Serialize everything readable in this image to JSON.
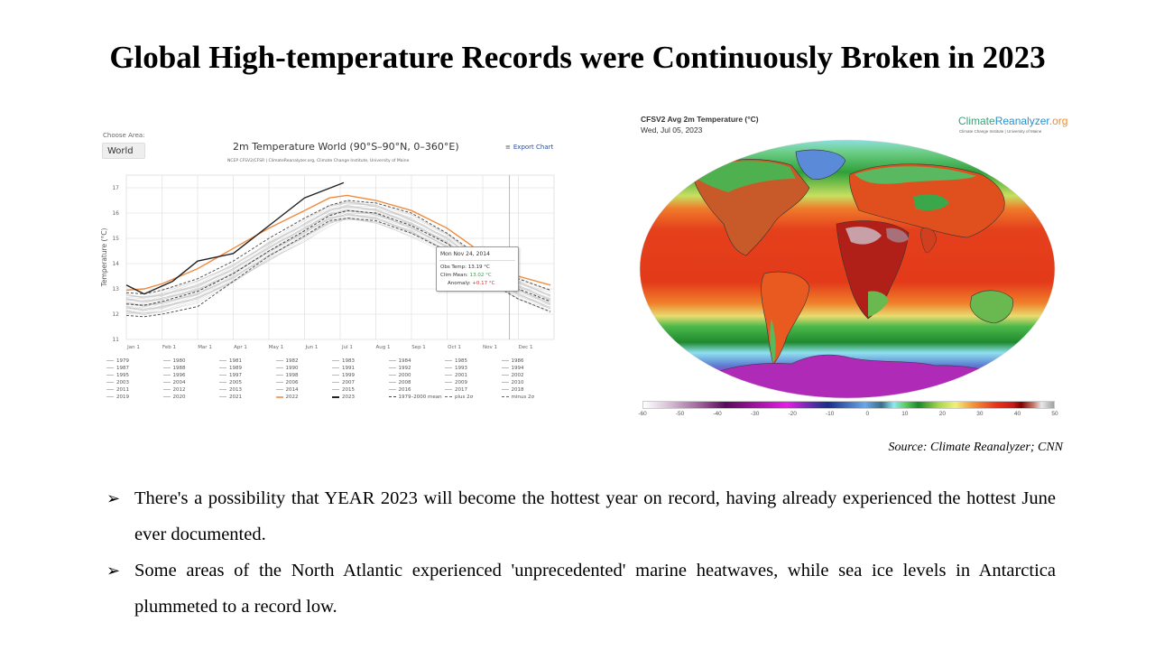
{
  "slide": {
    "title": "Global High-temperature Records were Continuously Broken in 2023",
    "source": "Source: Climate Reanalyzer; CNN",
    "bullets": [
      "There's a possibility that YEAR 2023 will become the hottest year on record, having already experienced the hottest June ever documented.",
      "Some areas of the North Atlantic experienced 'unprecedented' marine heatwaves, while sea ice levels in Antarctica plummeted to a record low."
    ],
    "bullet_icon": "arrow-bullet-icon"
  },
  "left_chart_ui": {
    "choose_area_label": "Choose Area:",
    "area_value": "World",
    "export_label": "Export Chart",
    "export_icon": "menu-icon",
    "subtitle": "NCEP CFSV2/CFSR | ClimateReanalyzer.org, Climate Change Institute, University of Maine",
    "tooltip": {
      "date": "Mon Nov 24, 2014",
      "obs_label": "Obs Temp:",
      "obs_value": "13.19 °C",
      "clim_label": "Clim Mean:",
      "clim_value": "13.02 °C",
      "anom_label": "Anomaly:",
      "anom_value": "+0.17 °C"
    }
  },
  "map": {
    "title": "CFSV2 Avg 2m Temperature (°C)",
    "date": "Wed, Jul 05, 2023",
    "brand_a": "Climate",
    "brand_b": "Reanalyzer",
    "brand_c": ".org",
    "brand_sub": "Climate Change Institute | University of Maine",
    "colorbar_ticks": [
      "-60",
      "-50",
      "-40",
      "-30",
      "-20",
      "-10",
      "0",
      "10",
      "20",
      "30",
      "40",
      "50"
    ],
    "colors": {
      "hot": "#d8321a",
      "warm": "#f07a2a",
      "mild": "#e8e070",
      "cool": "#3aa84a",
      "cold": "#8fd8f0",
      "frozen": "#c020c0"
    }
  },
  "chart_data": {
    "type": "line",
    "title": "2m Temperature World (90°S–90°N, 0–360°E)",
    "xlabel": "",
    "ylabel": "Temperature (°C)",
    "ylim": [
      11,
      17.5
    ],
    "yticks": [
      "11",
      "12",
      "13",
      "14",
      "15",
      "16",
      "17"
    ],
    "xticks": [
      "Jan 1",
      "Feb 1",
      "Mar 1",
      "Apr 1",
      "May 1",
      "Jun 1",
      "Jul 1",
      "Aug 1",
      "Sep 1",
      "Oct 1",
      "Nov 1",
      "Dec 1"
    ],
    "x_month_index": [
      0,
      1,
      2,
      3,
      4,
      5,
      6,
      7,
      8,
      9,
      10,
      11,
      12
    ],
    "grid": true,
    "legend_placement": "bottom",
    "legend": [
      "1979",
      "1980",
      "1981",
      "1982",
      "1983",
      "1984",
      "1985",
      "1986",
      "1987",
      "1988",
      "1989",
      "1990",
      "1991",
      "1992",
      "1993",
      "1994",
      "1995",
      "1996",
      "1997",
      "1998",
      "1999",
      "2000",
      "2001",
      "2002",
      "2003",
      "2004",
      "2005",
      "2006",
      "2007",
      "2008",
      "2009",
      "2010",
      "2011",
      "2012",
      "2013",
      "2014",
      "2015",
      "2016",
      "2017",
      "2018",
      "2019",
      "2020",
      "2021",
      "2022",
      "2023",
      "1979–2000 mean",
      "plus 2σ",
      "minus 2σ"
    ],
    "series": [
      {
        "name": "1979–2000 mean",
        "style": "dashed",
        "color": "#444444",
        "values": [
          12.4,
          12.35,
          12.5,
          12.9,
          13.6,
          14.5,
          15.3,
          15.9,
          16.1,
          16.0,
          15.5,
          14.8,
          13.8,
          13.0,
          12.5
        ]
      },
      {
        "name": "plus 2σ",
        "style": "dashed",
        "color": "#555555",
        "values": [
          12.85,
          12.8,
          12.95,
          13.4,
          14.1,
          15.0,
          15.8,
          16.3,
          16.5,
          16.4,
          16.0,
          15.2,
          14.2,
          13.4,
          12.95
        ]
      },
      {
        "name": "minus 2σ",
        "style": "dashed",
        "color": "#555555",
        "values": [
          11.95,
          11.9,
          12.0,
          12.3,
          13.3,
          14.3,
          15.1,
          15.7,
          15.8,
          15.7,
          15.2,
          14.5,
          13.4,
          12.6,
          12.1
        ]
      },
      {
        "name": "2022",
        "style": "solid",
        "color": "#f08a40",
        "values": [
          12.95,
          13.0,
          13.2,
          13.8,
          14.6,
          15.4,
          16.1,
          16.6,
          16.7,
          16.5,
          16.1,
          15.4,
          14.4,
          13.5,
          13.15
        ]
      },
      {
        "name": "2023",
        "style": "solid",
        "color": "#222222",
        "values": [
          13.15,
          12.8,
          13.3,
          14.1,
          14.4,
          15.5,
          16.6,
          17.2
        ]
      }
    ],
    "series_x_months": [
      0,
      0.5,
      1,
      2,
      3,
      4,
      5,
      5.7,
      6.2,
      7,
      8,
      9,
      10,
      11,
      11.9
    ],
    "series_2023_x_months": [
      0,
      0.5,
      1.3,
      2,
      3,
      4,
      5,
      6.1
    ],
    "background_years_band": {
      "name": "1979–2021 years",
      "color": "#bdbdbd"
    }
  }
}
